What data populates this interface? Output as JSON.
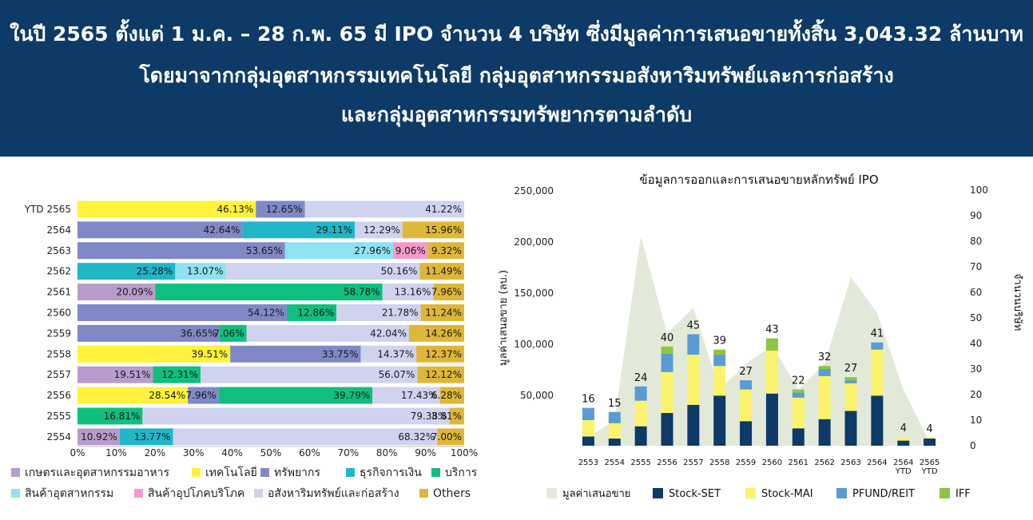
{
  "header": {
    "line1": "ในปี 2565 ตั้งแต่ 1 ม.ค. – 28 ก.พ. 65 มี IPO จำนวน 4 บริษัท ซึ่งมีมูลค่าการเสนอขายทั้งสิ้น 3,043.32 ล้านบาท",
    "line2": "โดยมาจากกลุ่มอุตสาหกรรมเทคโนโลยี กลุ่มอุตสาหกรรมอสังหาริมทรัพย์และการก่อสร้าง",
    "line3": "และกลุ่มอุตสาหกรรมทรัพยากรตามลำดับ",
    "background": "#0d3a66"
  },
  "chart_data": [
    {
      "type": "bar",
      "orientation": "horizontal",
      "stacked": true,
      "categories": [
        "YTD 2565",
        "2564",
        "2563",
        "2562",
        "2561",
        "2560",
        "2559",
        "2558",
        "2557",
        "2556",
        "2555",
        "2554"
      ],
      "xlim": [
        0,
        100
      ],
      "xticks": [
        "0%",
        "10%",
        "20%",
        "30%",
        "40%",
        "50%",
        "60%",
        "70%",
        "80%",
        "90%",
        "100%"
      ],
      "legend_position": "bottom",
      "series": [
        {
          "name": "เกษตรและอุตสาหกรรมอาหาร",
          "color": "#b79ccc"
        },
        {
          "name": "เทคโนโลยี",
          "color": "#fff23a"
        },
        {
          "name": "ทรัพยากร",
          "color": "#8088c6"
        },
        {
          "name": "ธุรกิจการเงิน",
          "color": "#1fb7c7"
        },
        {
          "name": "บริการ",
          "color": "#0fbf7e"
        },
        {
          "name": "สินค้าอุตสาหกรรม",
          "color": "#8ee2f2"
        },
        {
          "name": "สินค้าอุปโภคบริโภค",
          "color": "#f59ac8"
        },
        {
          "name": "อสังหาริมทรัพย์และก่อสร้าง",
          "color": "#cfd3ef"
        },
        {
          "name": "Others",
          "color": "#dfb738"
        }
      ],
      "rows": [
        [
          {
            "s": 1,
            "v": 46.13,
            "label": "46.13%"
          },
          {
            "s": 2,
            "v": 12.65,
            "label": "12.65%"
          },
          {
            "s": 7,
            "v": 41.22,
            "label": "41.22%"
          }
        ],
        [
          {
            "s": 2,
            "v": 42.64,
            "label": "42.64%"
          },
          {
            "s": 3,
            "v": 29.11,
            "label": "29.11%"
          },
          {
            "s": 7,
            "v": 12.29,
            "label": "12.29%"
          },
          {
            "s": 8,
            "v": 15.96,
            "label": "15.96%"
          }
        ],
        [
          {
            "s": 2,
            "v": 53.65,
            "label": "53.65%"
          },
          {
            "s": 5,
            "v": 27.96,
            "label": "27.96%"
          },
          {
            "s": 6,
            "v": 9.06,
            "label": "9.06%"
          },
          {
            "s": 8,
            "v": 9.32,
            "label": "9.32%"
          }
        ],
        [
          {
            "s": 3,
            "v": 25.28,
            "label": "25.28%"
          },
          {
            "s": 5,
            "v": 13.07,
            "label": "13.07%"
          },
          {
            "s": 7,
            "v": 50.16,
            "label": "50.16%"
          },
          {
            "s": 8,
            "v": 11.49,
            "label": "11.49%"
          }
        ],
        [
          {
            "s": 0,
            "v": 20.09,
            "label": "20.09%"
          },
          {
            "s": 4,
            "v": 58.78,
            "label": "58.78%"
          },
          {
            "s": 7,
            "v": 13.16,
            "label": "13.16%"
          },
          {
            "s": 8,
            "v": 7.96,
            "label": "7.96%"
          }
        ],
        [
          {
            "s": 2,
            "v": 54.12,
            "label": "54.12%"
          },
          {
            "s": 4,
            "v": 12.86,
            "label": "12.86%"
          },
          {
            "s": 7,
            "v": 21.78,
            "label": "21.78%"
          },
          {
            "s": 8,
            "v": 11.24,
            "label": "11.24%"
          }
        ],
        [
          {
            "s": 2,
            "v": 36.65,
            "label": "36.65%"
          },
          {
            "s": 4,
            "v": 7.06,
            "label": "7.06%"
          },
          {
            "s": 7,
            "v": 42.04,
            "label": "42.04%"
          },
          {
            "s": 8,
            "v": 14.26,
            "label": "14.26%"
          }
        ],
        [
          {
            "s": 1,
            "v": 39.51,
            "label": "39.51%"
          },
          {
            "s": 2,
            "v": 33.75,
            "label": "33.75%"
          },
          {
            "s": 7,
            "v": 14.37,
            "label": "14.37%"
          },
          {
            "s": 8,
            "v": 12.37,
            "label": "12.37%"
          }
        ],
        [
          {
            "s": 0,
            "v": 19.51,
            "label": "19.51%"
          },
          {
            "s": 4,
            "v": 12.31,
            "label": "12.31%"
          },
          {
            "s": 7,
            "v": 56.07,
            "label": "56.07%"
          },
          {
            "s": 8,
            "v": 12.12,
            "label": "12.12%"
          }
        ],
        [
          {
            "s": 1,
            "v": 28.54,
            "label": "28.54%"
          },
          {
            "s": 2,
            "v": 7.96,
            "label": "7.96%"
          },
          {
            "s": 4,
            "v": 39.79,
            "label": "39.79%"
          },
          {
            "s": 7,
            "v": 17.43,
            "label": "17.43%"
          },
          {
            "s": 8,
            "v": 6.28,
            "label": "6.28%"
          }
        ],
        [
          {
            "s": 4,
            "v": 16.81,
            "label": "16.81%"
          },
          {
            "s": 7,
            "v": 79.38,
            "label": "79.38%"
          },
          {
            "s": 8,
            "v": 3.81,
            "label": "3.81%"
          }
        ],
        [
          {
            "s": 0,
            "v": 10.92,
            "label": "10.92%"
          },
          {
            "s": 3,
            "v": 13.77,
            "label": "13.77%"
          },
          {
            "s": 7,
            "v": 68.32,
            "label": "68.32%"
          },
          {
            "s": 8,
            "v": 7.0,
            "label": "7.00%"
          }
        ]
      ]
    },
    {
      "type": "bar",
      "stacked": true,
      "title": "ข้อมูลการออกและการเสนอขายหลักทรัพย์ IPO",
      "ylabel": "มูลค่าเสนอขาย (ลบ.)",
      "y2label": "จำนวนบริษัท",
      "ylim": [
        0,
        250000
      ],
      "y2lim": [
        0,
        100
      ],
      "yticks": [
        "",
        "50,000",
        "100,000",
        "150,000",
        "200,000",
        "250,000"
      ],
      "y2ticks": [
        "0",
        "10",
        "20",
        "30",
        "40",
        "50",
        "60",
        "70",
        "80",
        "90",
        "100"
      ],
      "categories": [
        "2553",
        "2554",
        "2555",
        "2556",
        "2557",
        "2558",
        "2559",
        "2560",
        "2561",
        "2562",
        "2563",
        "2564",
        "2564 YTD",
        "2565 YTD"
      ],
      "area": {
        "name": "มูลค่าเสนอขาย",
        "color": "#e3e9d9",
        "values": [
          8000,
          25000,
          205000,
          110000,
          135000,
          55000,
          80000,
          98000,
          55000,
          80000,
          165000,
          130000,
          55000,
          3000
        ]
      },
      "series": [
        {
          "name": "Stock-SET",
          "color": "#0d3a66",
          "values": [
            9000,
            7000,
            19000,
            32000,
            40000,
            49000,
            24000,
            51000,
            17000,
            26000,
            34000,
            49000,
            5000,
            7000
          ]
        },
        {
          "name": "Stock-MAI",
          "color": "#fbf36d",
          "values": [
            16000,
            15000,
            25000,
            40000,
            49000,
            29000,
            31000,
            42000,
            30000,
            42000,
            27000,
            45000,
            3500,
            1000
          ]
        },
        {
          "name": "PFUND/REIT",
          "color": "#5b9bd5",
          "values": [
            12000,
            11000,
            14000,
            18000,
            20000,
            11000,
            9000,
            0,
            5000,
            7000,
            3000,
            7000,
            0,
            0
          ]
        },
        {
          "name": "IFF",
          "color": "#8cc63f",
          "values": [
            0,
            0,
            0,
            7000,
            0,
            5000,
            0,
            12000,
            3000,
            3000,
            3000,
            0,
            0,
            0
          ]
        }
      ],
      "counts": [
        16,
        15,
        24,
        40,
        45,
        39,
        27,
        43,
        22,
        32,
        27,
        41,
        4,
        4
      ],
      "legend_position": "bottom"
    }
  ]
}
